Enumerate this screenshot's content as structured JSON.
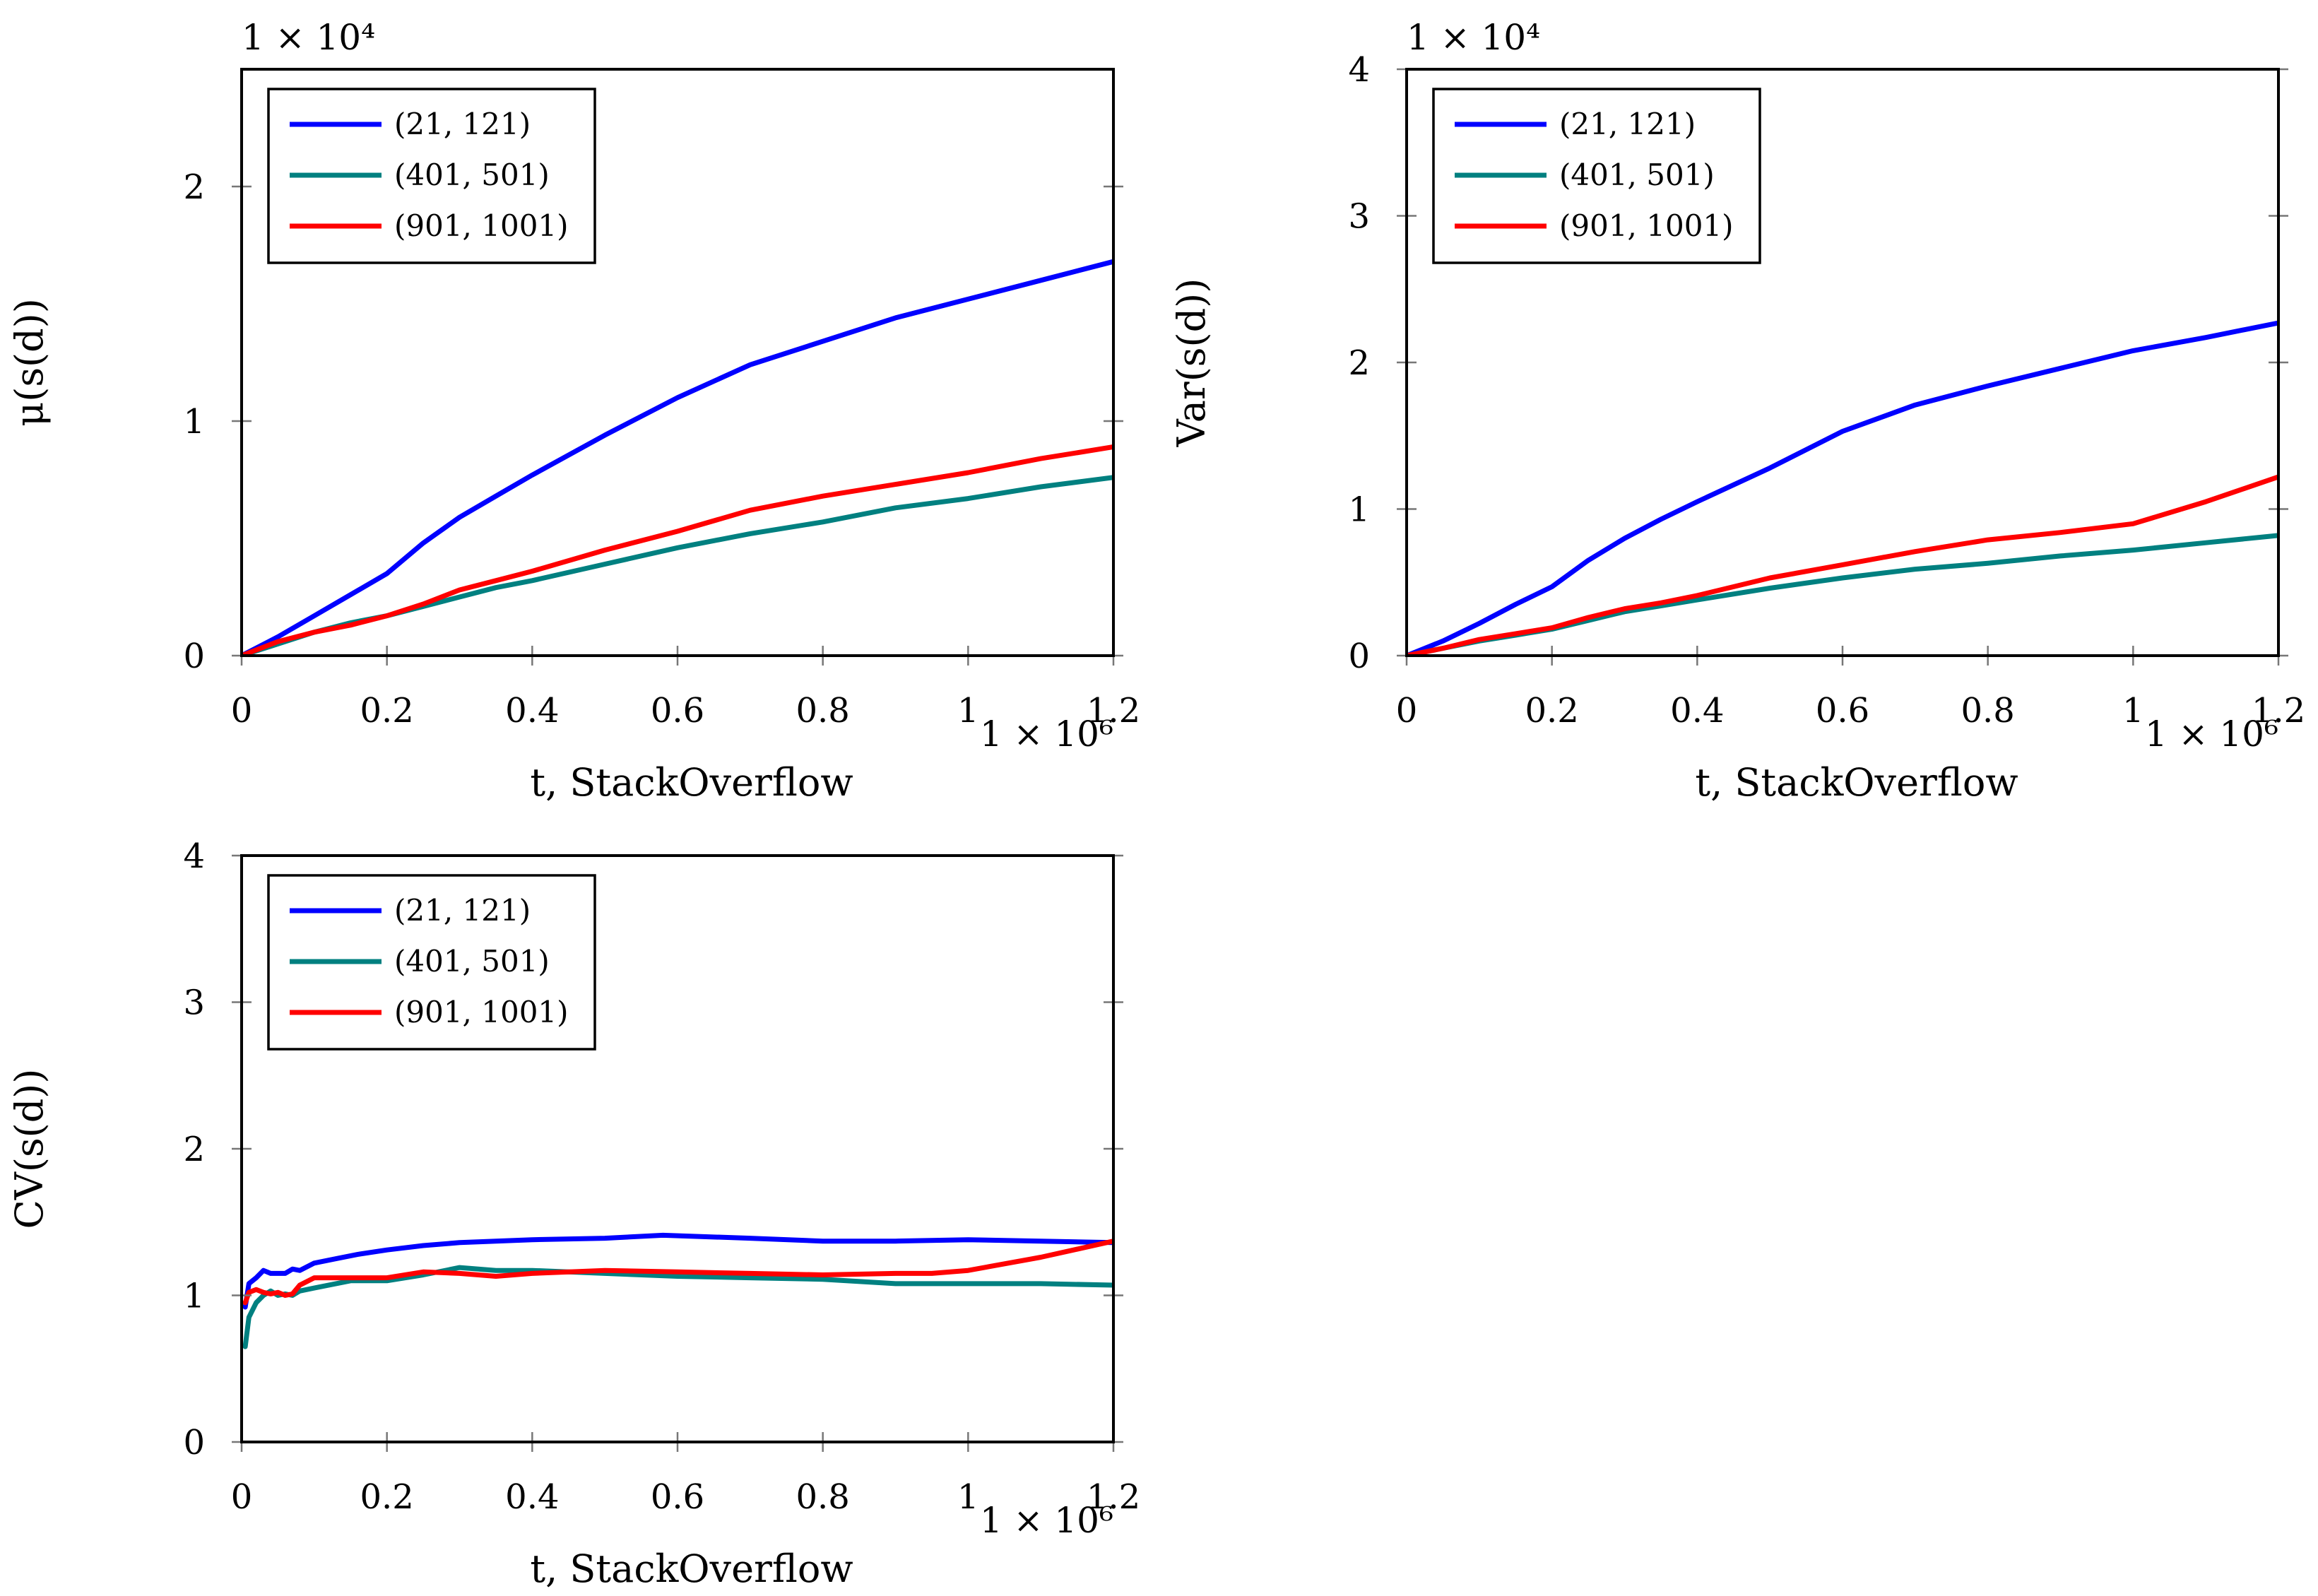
{
  "colors": {
    "blue": "#0000ff",
    "teal": "#008080",
    "red": "#ff0000"
  },
  "chart_data": [
    {
      "type": "line",
      "id": "mean",
      "xlabel": "t, StackOverflow",
      "ylabel": "μ(s(d))",
      "x_multiplier": "1 × 10⁶",
      "y_multiplier": "1 × 10⁴",
      "xlim": [
        0,
        1.2
      ],
      "ylim": [
        0,
        2.5
      ],
      "xticks": [
        0,
        0.2,
        0.4,
        0.6,
        0.8,
        1,
        1.2
      ],
      "xtick_labels": [
        "0",
        "0.2",
        "0.4",
        "0.6",
        "0.8",
        "1",
        "1.2"
      ],
      "yticks": [
        0,
        1,
        2
      ],
      "ytick_labels": [
        "0",
        "1",
        "2"
      ],
      "legend_position": "top-left",
      "series": [
        {
          "name": "(21, 121)",
          "color": "#0000ff",
          "x": [
            0,
            0.05,
            0.1,
            0.15,
            0.2,
            0.25,
            0.3,
            0.35,
            0.4,
            0.5,
            0.6,
            0.7,
            0.8,
            0.9,
            1.0,
            1.1,
            1.2
          ],
          "y": [
            0,
            0.08,
            0.17,
            0.26,
            0.35,
            0.48,
            0.59,
            0.68,
            0.77,
            0.94,
            1.1,
            1.24,
            1.34,
            1.44,
            1.52,
            1.6,
            1.68
          ]
        },
        {
          "name": "(401, 501)",
          "color": "#008080",
          "x": [
            0,
            0.05,
            0.1,
            0.15,
            0.2,
            0.25,
            0.3,
            0.35,
            0.4,
            0.5,
            0.6,
            0.7,
            0.8,
            0.9,
            1.0,
            1.1,
            1.2
          ],
          "y": [
            0,
            0.05,
            0.1,
            0.14,
            0.17,
            0.21,
            0.25,
            0.29,
            0.32,
            0.39,
            0.46,
            0.52,
            0.57,
            0.63,
            0.67,
            0.72,
            0.76
          ]
        },
        {
          "name": "(901, 1001)",
          "color": "#ff0000",
          "x": [
            0,
            0.05,
            0.1,
            0.15,
            0.2,
            0.25,
            0.3,
            0.35,
            0.4,
            0.5,
            0.6,
            0.7,
            0.8,
            0.9,
            1.0,
            1.1,
            1.2
          ],
          "y": [
            0,
            0.06,
            0.1,
            0.13,
            0.17,
            0.22,
            0.28,
            0.32,
            0.36,
            0.45,
            0.53,
            0.62,
            0.68,
            0.73,
            0.78,
            0.84,
            0.89
          ]
        }
      ]
    },
    {
      "type": "line",
      "id": "variance",
      "xlabel": "t, StackOverflow",
      "ylabel": "Var(s(d))",
      "x_multiplier": "1 × 10⁶",
      "y_multiplier": "1 × 10⁴",
      "xlim": [
        0,
        1.2
      ],
      "ylim": [
        0,
        4
      ],
      "xticks": [
        0,
        0.2,
        0.4,
        0.6,
        0.8,
        1,
        1.2
      ],
      "xtick_labels": [
        "0",
        "0.2",
        "0.4",
        "0.6",
        "0.8",
        "1",
        "1.2"
      ],
      "yticks": [
        0,
        1,
        2,
        3,
        4
      ],
      "ytick_labels": [
        "0",
        "1",
        "2",
        "3",
        "4"
      ],
      "legend_position": "top-left",
      "series": [
        {
          "name": "(21, 121)",
          "color": "#0000ff",
          "x": [
            0,
            0.05,
            0.1,
            0.15,
            0.2,
            0.25,
            0.3,
            0.35,
            0.4,
            0.5,
            0.6,
            0.7,
            0.8,
            0.9,
            1.0,
            1.1,
            1.2
          ],
          "y": [
            0,
            0.1,
            0.22,
            0.35,
            0.47,
            0.65,
            0.8,
            0.93,
            1.05,
            1.28,
            1.53,
            1.71,
            1.84,
            1.96,
            2.08,
            2.17,
            2.27
          ]
        },
        {
          "name": "(401, 501)",
          "color": "#008080",
          "x": [
            0,
            0.05,
            0.1,
            0.15,
            0.2,
            0.25,
            0.3,
            0.35,
            0.4,
            0.5,
            0.6,
            0.7,
            0.8,
            0.9,
            1.0,
            1.1,
            1.2
          ],
          "y": [
            0,
            0.05,
            0.1,
            0.14,
            0.18,
            0.24,
            0.3,
            0.34,
            0.38,
            0.46,
            0.53,
            0.59,
            0.63,
            0.68,
            0.72,
            0.77,
            0.82
          ]
        },
        {
          "name": "(901, 1001)",
          "color": "#ff0000",
          "x": [
            0,
            0.05,
            0.1,
            0.15,
            0.2,
            0.25,
            0.3,
            0.35,
            0.4,
            0.5,
            0.6,
            0.7,
            0.8,
            0.9,
            1.0,
            1.1,
            1.2
          ],
          "y": [
            0,
            0.05,
            0.11,
            0.15,
            0.19,
            0.26,
            0.32,
            0.36,
            0.41,
            0.53,
            0.62,
            0.71,
            0.79,
            0.84,
            0.9,
            1.05,
            1.22
          ]
        }
      ]
    },
    {
      "type": "line",
      "id": "cv",
      "xlabel": "t, StackOverflow",
      "ylabel": "CV(s(d))",
      "x_multiplier": "1 × 10⁶",
      "xlim": [
        0,
        1.2
      ],
      "ylim": [
        0,
        4
      ],
      "xticks": [
        0,
        0.2,
        0.4,
        0.6,
        0.8,
        1,
        1.2
      ],
      "xtick_labels": [
        "0",
        "0.2",
        "0.4",
        "0.6",
        "0.8",
        "1",
        "1.2"
      ],
      "yticks": [
        0,
        1,
        2,
        3,
        4
      ],
      "ytick_labels": [
        "0",
        "1",
        "2",
        "3",
        "4"
      ],
      "legend_position": "top-left",
      "series": [
        {
          "name": "(21, 121)",
          "color": "#0000ff",
          "x": [
            0.005,
            0.01,
            0.02,
            0.03,
            0.04,
            0.05,
            0.06,
            0.07,
            0.08,
            0.1,
            0.13,
            0.16,
            0.2,
            0.25,
            0.3,
            0.35,
            0.4,
            0.5,
            0.58,
            0.7,
            0.8,
            0.9,
            1.0,
            1.1,
            1.2
          ],
          "y": [
            0.92,
            1.08,
            1.12,
            1.17,
            1.15,
            1.15,
            1.15,
            1.18,
            1.17,
            1.22,
            1.25,
            1.28,
            1.31,
            1.34,
            1.36,
            1.37,
            1.38,
            1.39,
            1.41,
            1.39,
            1.37,
            1.37,
            1.38,
            1.37,
            1.36
          ]
        },
        {
          "name": "(401, 501)",
          "color": "#008080",
          "x": [
            0.005,
            0.01,
            0.02,
            0.03,
            0.04,
            0.05,
            0.06,
            0.07,
            0.08,
            0.1,
            0.15,
            0.2,
            0.25,
            0.3,
            0.35,
            0.4,
            0.5,
            0.6,
            0.7,
            0.8,
            0.9,
            1.0,
            1.1,
            1.2
          ],
          "y": [
            0.65,
            0.85,
            0.95,
            1.0,
            1.03,
            1.0,
            1.01,
            1.0,
            1.03,
            1.05,
            1.1,
            1.1,
            1.14,
            1.19,
            1.17,
            1.17,
            1.15,
            1.13,
            1.12,
            1.11,
            1.08,
            1.08,
            1.08,
            1.07
          ]
        },
        {
          "name": "(901, 1001)",
          "color": "#ff0000",
          "x": [
            0.005,
            0.01,
            0.02,
            0.03,
            0.04,
            0.05,
            0.06,
            0.07,
            0.08,
            0.1,
            0.15,
            0.2,
            0.25,
            0.3,
            0.35,
            0.4,
            0.5,
            0.6,
            0.7,
            0.8,
            0.9,
            0.95,
            1.0,
            1.1,
            1.2
          ],
          "y": [
            0.95,
            1.02,
            1.04,
            1.02,
            1.01,
            1.02,
            1.0,
            1.01,
            1.07,
            1.12,
            1.12,
            1.12,
            1.16,
            1.15,
            1.13,
            1.15,
            1.17,
            1.16,
            1.15,
            1.14,
            1.15,
            1.15,
            1.17,
            1.26,
            1.37
          ]
        }
      ]
    }
  ]
}
